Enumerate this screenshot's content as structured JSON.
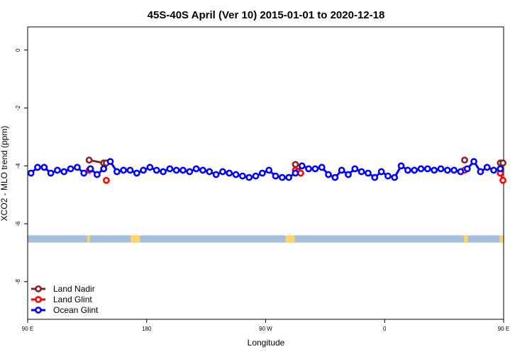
{
  "chart_data": {
    "type": "line",
    "title": "45S-40S April (Ver 10)   2015-01-01 to 2020-12-18",
    "xlabel": "Longitude",
    "ylabel": "XCO2 - MLO trend (ppm)",
    "xlim": [
      90,
      450
    ],
    "ylim": [
      -9.3,
      0.8
    ],
    "x_ticks": [
      90,
      180,
      270,
      360,
      450,
      540
    ],
    "x_tick_labels": [
      "90 E",
      "180",
      "90 W",
      "0",
      "90 E",
      "180"
    ],
    "y_ticks": [
      0,
      -2,
      -4,
      -6,
      -8
    ],
    "y_tick_labels": [
      "0",
      "-2",
      "-4",
      "-6",
      "-8"
    ],
    "grid": false,
    "legend_position": "bottom-left",
    "land_strip": {
      "y_range": [
        -6.65,
        -6.4
      ],
      "ocean_color": "#a6bddb",
      "land_color": "#fdd56a",
      "land_spans": [
        [
          135,
          137
        ],
        [
          168,
          175
        ],
        [
          285,
          292
        ],
        [
          420,
          423
        ],
        [
          447,
          450
        ]
      ]
    },
    "series": [
      {
        "name": "Land Nadir",
        "color": "#8b2323",
        "points": [
          [
            136.5,
            -3.8
          ],
          [
            147.5,
            -3.9
          ],
          [
            149.5,
            -3.9
          ],
          [
            292.5,
            -3.95
          ],
          [
            420.5,
            -3.8
          ],
          [
            447.5,
            -3.9
          ],
          [
            449.5,
            -3.9
          ]
        ],
        "segments": [
          [
            0,
            1
          ],
          [
            1,
            2
          ],
          [
            5,
            6
          ]
        ]
      },
      {
        "name": "Land Glint",
        "color": "#ff0000",
        "points": [
          [
            136.5,
            -4.15
          ],
          [
            149.5,
            -4.5
          ],
          [
            292.5,
            -4.15
          ],
          [
            294.5,
            -4.2
          ],
          [
            296.5,
            -4.25
          ],
          [
            420.5,
            -4.15
          ],
          [
            447.5,
            -4.25
          ],
          [
            449.5,
            -4.5
          ]
        ],
        "segments": [
          [
            2,
            3
          ],
          [
            3,
            4
          ],
          [
            6,
            7
          ]
        ]
      },
      {
        "name": "Ocean Glint",
        "color": "#0000ff",
        "x": [
          92.5,
          97.5,
          102.5,
          107.5,
          112.5,
          117.5,
          122.5,
          127.5,
          132.5,
          137.5,
          142.5,
          147.5,
          152.5,
          157.5,
          162.5,
          167.5,
          172.5,
          177.5,
          182.5,
          187.5,
          192.5,
          197.5,
          202.5,
          207.5,
          212.5,
          217.5,
          222.5,
          227.5,
          232.5,
          237.5,
          242.5,
          247.5,
          252.5,
          257.5,
          262.5,
          267.5,
          272.5,
          277.5,
          282.5,
          287.5,
          292.5,
          297.5,
          302.5,
          307.5,
          312.5,
          317.5,
          322.5,
          327.5,
          332.5,
          337.5,
          342.5,
          347.5,
          352.5,
          357.5,
          362.5,
          367.5,
          372.5,
          377.5,
          382.5,
          387.5,
          392.5,
          397.5,
          402.5,
          407.5,
          412.5,
          417.5,
          422.5,
          427.5,
          432.5,
          437.5,
          442.5,
          447.5
        ],
        "values": [
          -4.25,
          -4.05,
          -4.05,
          -4.25,
          -4.15,
          -4.2,
          -4.1,
          -4.05,
          -4.25,
          -4.1,
          -4.3,
          -4.1,
          -3.85,
          -4.2,
          -4.15,
          -4.15,
          -4.25,
          -4.15,
          -4.05,
          -4.15,
          -4.2,
          -4.1,
          -4.15,
          -4.15,
          -4.2,
          -4.1,
          -4.15,
          -4.2,
          -4.3,
          -4.2,
          -4.25,
          -4.3,
          -4.35,
          -4.4,
          -4.35,
          -4.25,
          -4.15,
          -4.35,
          -4.4,
          -4.4,
          -4.25,
          -4.0,
          -4.1,
          -4.1,
          -4.05,
          -4.3,
          -4.4,
          -4.15,
          -4.3,
          -4.1,
          -4.2,
          -4.25,
          -4.4,
          -4.2,
          -4.35,
          -4.4,
          -4.0,
          -4.15,
          -4.15,
          -4.1,
          -4.1,
          -4.15,
          -4.1,
          -4.15,
          -4.15,
          -4.2,
          -4.1,
          -3.85,
          -4.2,
          -4.05,
          -4.15,
          -4.1
        ]
      }
    ]
  }
}
